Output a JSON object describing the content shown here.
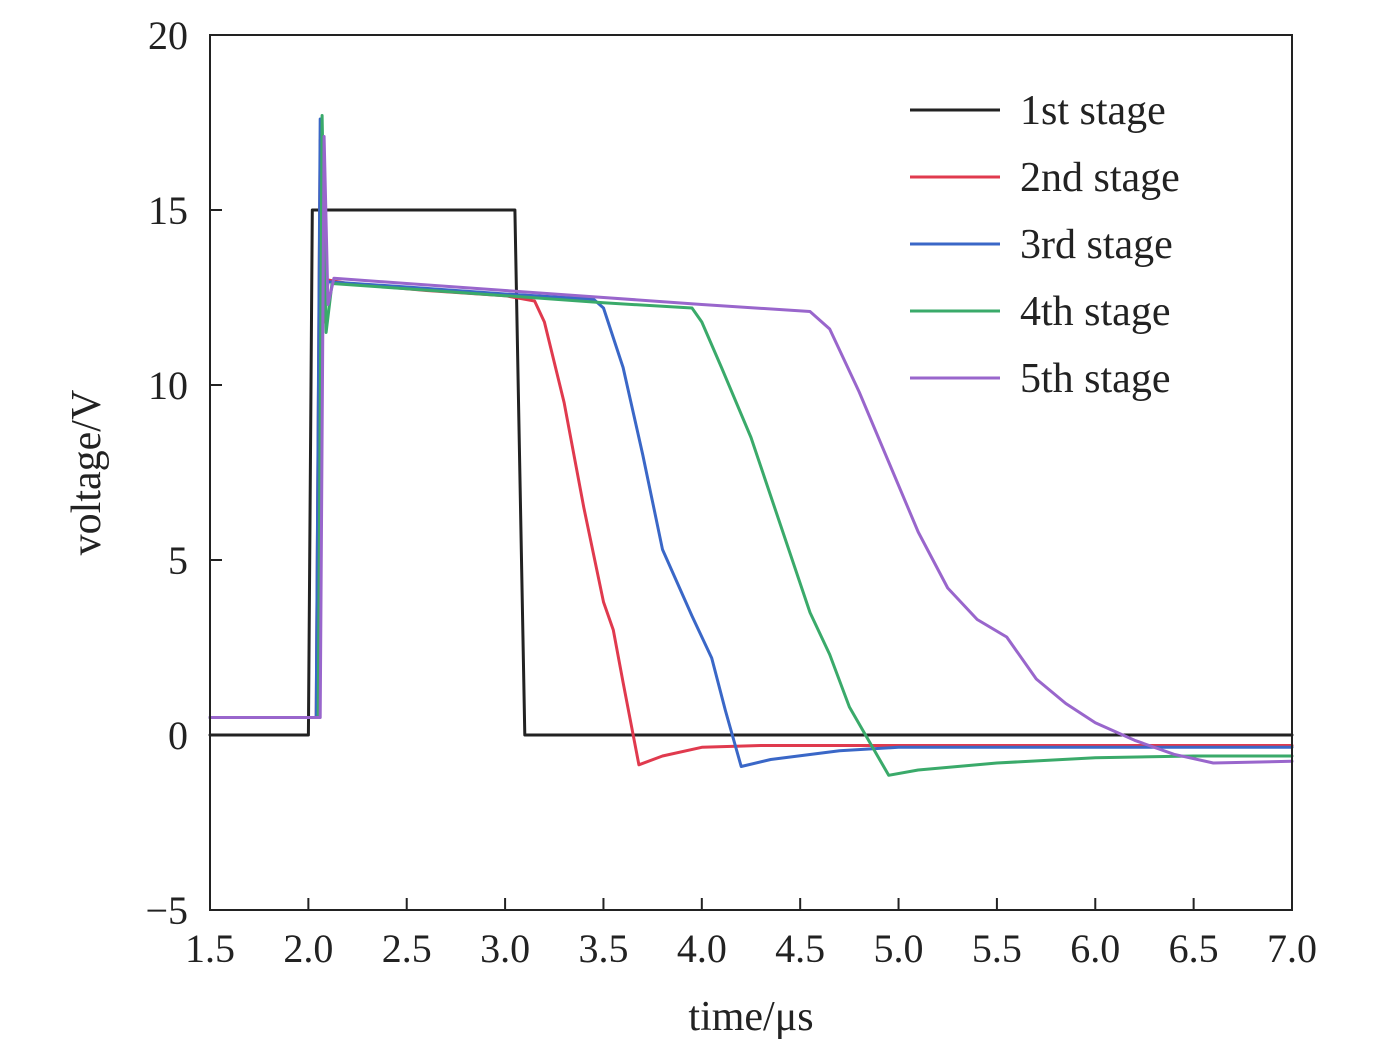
{
  "chart_data": {
    "type": "line",
    "title": "",
    "xlabel": "time/μs",
    "ylabel": "voltage/V",
    "xlim": [
      1.5,
      7.0
    ],
    "ylim": [
      -5,
      20
    ],
    "xticks": [
      1.5,
      2.0,
      2.5,
      3.0,
      3.5,
      4.0,
      4.5,
      5.0,
      5.5,
      6.0,
      6.5,
      7.0
    ],
    "xtick_labels": [
      "1.5",
      "2.0",
      "2.5",
      "3.0",
      "3.5",
      "4.0",
      "4.5",
      "5.0",
      "5.5",
      "6.0",
      "6.5",
      "7.0"
    ],
    "yticks": [
      -5,
      0,
      5,
      10,
      15,
      20
    ],
    "ytick_labels": [
      "−5",
      "0",
      "5",
      "10",
      "15",
      "20"
    ],
    "grid": false,
    "legend_position": "top-right",
    "series": [
      {
        "name": "1st stage",
        "color": "#222222",
        "points": [
          [
            1.5,
            0
          ],
          [
            2.0,
            0
          ],
          [
            2.02,
            15
          ],
          [
            3.05,
            15
          ],
          [
            3.1,
            0
          ],
          [
            7.0,
            0
          ]
        ]
      },
      {
        "name": "2nd stage",
        "color": "#e03a4e",
        "points": [
          [
            1.5,
            0.5
          ],
          [
            2.02,
            0.5
          ],
          [
            2.04,
            0.5
          ],
          [
            2.06,
            17.0
          ],
          [
            2.08,
            11.8
          ],
          [
            2.1,
            13.0
          ],
          [
            2.2,
            12.9
          ],
          [
            2.6,
            12.7
          ],
          [
            3.0,
            12.55
          ],
          [
            3.15,
            12.4
          ],
          [
            3.2,
            11.8
          ],
          [
            3.3,
            9.5
          ],
          [
            3.4,
            6.5
          ],
          [
            3.5,
            3.8
          ],
          [
            3.55,
            3.0
          ],
          [
            3.6,
            1.5
          ],
          [
            3.68,
            -0.85
          ],
          [
            3.8,
            -0.6
          ],
          [
            4.0,
            -0.35
          ],
          [
            4.3,
            -0.3
          ],
          [
            5.0,
            -0.3
          ],
          [
            6.0,
            -0.3
          ],
          [
            7.0,
            -0.3
          ]
        ]
      },
      {
        "name": "3rd stage",
        "color": "#3a67c7",
        "points": [
          [
            1.5,
            0.5
          ],
          [
            2.04,
            0.5
          ],
          [
            2.06,
            17.6
          ],
          [
            2.08,
            12.0
          ],
          [
            2.1,
            12.95
          ],
          [
            2.5,
            12.8
          ],
          [
            3.0,
            12.6
          ],
          [
            3.45,
            12.45
          ],
          [
            3.5,
            12.2
          ],
          [
            3.6,
            10.5
          ],
          [
            3.7,
            8.0
          ],
          [
            3.8,
            5.3
          ],
          [
            3.95,
            3.4
          ],
          [
            4.05,
            2.2
          ],
          [
            4.12,
            0.7
          ],
          [
            4.2,
            -0.9
          ],
          [
            4.35,
            -0.7
          ],
          [
            4.7,
            -0.45
          ],
          [
            5.0,
            -0.35
          ],
          [
            6.0,
            -0.35
          ],
          [
            7.0,
            -0.35
          ]
        ]
      },
      {
        "name": "4th stage",
        "color": "#3aaa6a",
        "points": [
          [
            1.5,
            0.5
          ],
          [
            2.05,
            0.5
          ],
          [
            2.07,
            17.7
          ],
          [
            2.09,
            11.5
          ],
          [
            2.12,
            12.9
          ],
          [
            2.5,
            12.75
          ],
          [
            3.0,
            12.55
          ],
          [
            3.5,
            12.35
          ],
          [
            3.95,
            12.2
          ],
          [
            4.0,
            11.8
          ],
          [
            4.1,
            10.5
          ],
          [
            4.25,
            8.5
          ],
          [
            4.4,
            6.0
          ],
          [
            4.55,
            3.5
          ],
          [
            4.65,
            2.3
          ],
          [
            4.75,
            0.8
          ],
          [
            4.95,
            -1.15
          ],
          [
            5.1,
            -1.0
          ],
          [
            5.5,
            -0.8
          ],
          [
            6.0,
            -0.65
          ],
          [
            6.5,
            -0.6
          ],
          [
            7.0,
            -0.6
          ]
        ]
      },
      {
        "name": "5th stage",
        "color": "#9966cc",
        "points": [
          [
            1.5,
            0.5
          ],
          [
            2.06,
            0.5
          ],
          [
            2.08,
            17.1
          ],
          [
            2.1,
            12.3
          ],
          [
            2.13,
            13.05
          ],
          [
            2.5,
            12.9
          ],
          [
            3.0,
            12.7
          ],
          [
            3.5,
            12.5
          ],
          [
            4.0,
            12.3
          ],
          [
            4.55,
            12.1
          ],
          [
            4.65,
            11.6
          ],
          [
            4.8,
            9.8
          ],
          [
            4.95,
            7.8
          ],
          [
            5.1,
            5.8
          ],
          [
            5.25,
            4.2
          ],
          [
            5.4,
            3.3
          ],
          [
            5.55,
            2.8
          ],
          [
            5.7,
            1.6
          ],
          [
            5.85,
            0.9
          ],
          [
            6.0,
            0.35
          ],
          [
            6.2,
            -0.15
          ],
          [
            6.4,
            -0.55
          ],
          [
            6.6,
            -0.8
          ],
          [
            7.0,
            -0.75
          ]
        ]
      }
    ]
  }
}
